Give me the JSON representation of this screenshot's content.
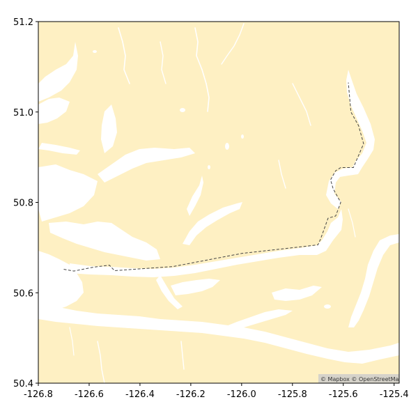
{
  "map": {
    "x_ticks": [
      "-126.8",
      "-126.6",
      "-126.4",
      "-126.2",
      "-126.0",
      "-125.8",
      "-125.6",
      "-125.4"
    ],
    "y_ticks": [
      "50.4",
      "50.6",
      "50.8",
      "51.0",
      "51.2"
    ],
    "x_range": [
      -126.8,
      -125.38
    ],
    "y_range": [
      50.4,
      51.2
    ],
    "attribution": "© Mapbox © OpenStreetMap",
    "colors": {
      "land": "#fef0c3",
      "water": "#ffffff",
      "route": "#444444",
      "frame": "#000000"
    },
    "route_style": "dashed",
    "route": [
      [
        -126.7,
        50.652
      ],
      [
        -126.66,
        50.648
      ],
      [
        -126.58,
        50.657
      ],
      [
        -126.52,
        50.661
      ],
      [
        -126.5,
        50.649
      ],
      [
        -126.27,
        50.658
      ],
      [
        -126.0,
        50.687
      ],
      [
        -125.7,
        50.706
      ],
      [
        -125.69,
        50.718
      ],
      [
        -125.66,
        50.765
      ],
      [
        -125.63,
        50.77
      ],
      [
        -125.61,
        50.8
      ],
      [
        -125.64,
        50.83
      ],
      [
        -125.65,
        50.85
      ],
      [
        -125.63,
        50.87
      ],
      [
        -125.61,
        50.877
      ],
      [
        -125.56,
        50.877
      ],
      [
        -125.52,
        50.93
      ],
      [
        -125.54,
        50.97
      ],
      [
        -125.57,
        51.0
      ],
      [
        -125.58,
        51.065
      ]
    ]
  }
}
